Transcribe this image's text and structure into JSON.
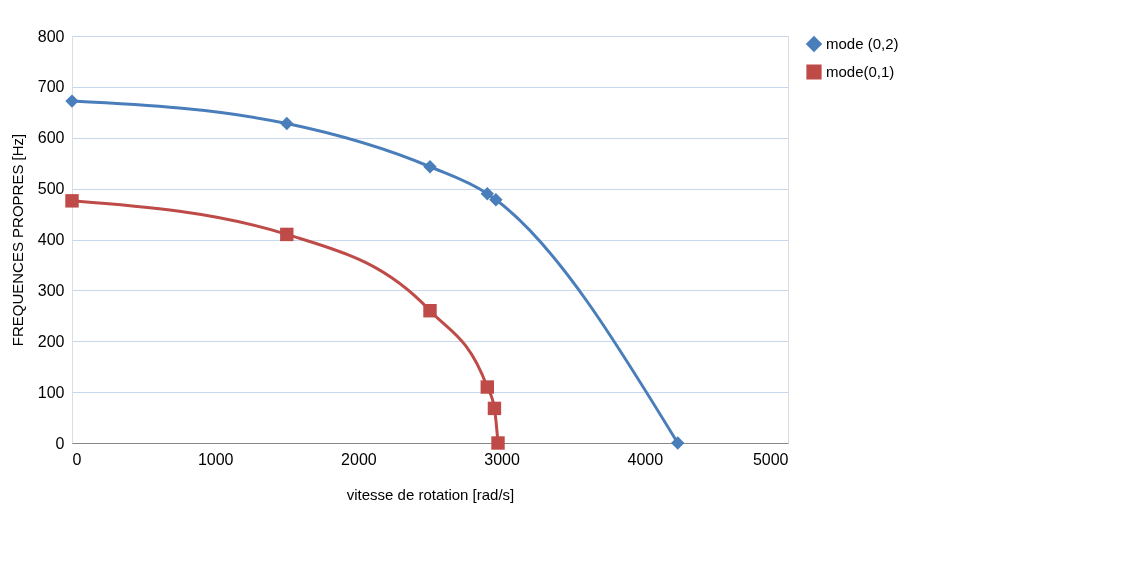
{
  "chart_data": {
    "type": "line",
    "xlabel": "vitesse de rotation [rad/s]",
    "ylabel": "FREQUENCES PROPRES [Hz]",
    "xlim": [
      0,
      5000
    ],
    "xticks": [
      0,
      1000,
      2000,
      3000,
      4000,
      5000
    ],
    "ylim": [
      0,
      800
    ],
    "yticks": [
      0,
      100,
      200,
      300,
      400,
      500,
      600,
      700,
      800
    ],
    "grid": "y",
    "legend": "right",
    "series": [
      {
        "name": "mode (0,2)",
        "color": "#4a7ebb",
        "marker": "diamond",
        "x": [
          0,
          1500,
          2500,
          2900,
          2960,
          4230
        ],
        "values": [
          672,
          628,
          543,
          490,
          478,
          0
        ]
      },
      {
        "name": "mode(0,1)",
        "color": "#be4b48",
        "marker": "square",
        "x": [
          0,
          1500,
          2500,
          2900,
          2950,
          2975
        ],
        "values": [
          476,
          410,
          260,
          110,
          68,
          0
        ]
      }
    ]
  }
}
